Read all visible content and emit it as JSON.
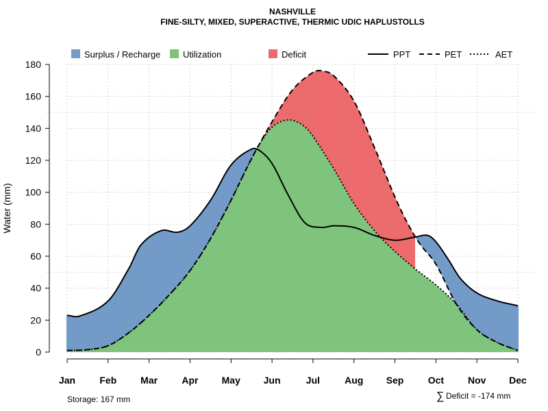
{
  "chart_data": {
    "type": "area",
    "title": "NASHVILLE",
    "subtitle": "FINE-SILTY, MIXED, SUPERACTIVE, THERMIC UDIC HAPLUSTOLLS",
    "ylabel": "Water (mm)",
    "xlabel": "",
    "ylim": [
      0,
      180
    ],
    "yticks": [
      0,
      20,
      40,
      60,
      80,
      100,
      120,
      140,
      160,
      180
    ],
    "categories": [
      "Jan",
      "Feb",
      "Mar",
      "Apr",
      "May",
      "Jun",
      "Jul",
      "Aug",
      "Sep",
      "Oct",
      "Nov",
      "Dec"
    ],
    "extra_hlines": [
      50,
      150
    ],
    "grid": true,
    "series": [
      {
        "name": "PPT",
        "style": "solid",
        "x": [
          0.0,
          0.3,
          1.0,
          1.5,
          1.8,
          2.3,
          2.7,
          3.0,
          3.5,
          4.0,
          4.5,
          4.7,
          5.0,
          5.4,
          5.8,
          6.2,
          6.5,
          7.0,
          7.5,
          8.0,
          8.5,
          8.8,
          9.0,
          9.3,
          9.6,
          10.0,
          10.5,
          11.0
        ],
        "values": [
          23,
          22.5,
          32,
          52,
          67,
          76,
          75,
          79,
          95,
          117,
          127,
          126,
          118,
          98,
          81,
          78,
          79,
          78,
          73,
          70,
          72,
          73,
          69,
          58,
          46,
          37,
          32,
          29
        ]
      },
      {
        "name": "PET",
        "style": "dashed",
        "x": [
          0.0,
          0.5,
          1.0,
          1.5,
          2.0,
          2.5,
          3.0,
          3.5,
          4.0,
          4.5,
          5.0,
          5.5,
          6.0,
          6.2,
          6.5,
          7.0,
          7.5,
          8.0,
          8.3,
          8.6,
          9.0,
          9.5,
          10.0,
          10.5,
          11.0
        ],
        "values": [
          1,
          1.5,
          4,
          12,
          23,
          36,
          51,
          71,
          95,
          121,
          144,
          164,
          175,
          176,
          173,
          157,
          128,
          97,
          81,
          68,
          55,
          30,
          14,
          6,
          1
        ]
      },
      {
        "name": "AET",
        "style": "dotted",
        "x": [
          0.0,
          0.5,
          1.0,
          1.5,
          2.0,
          2.5,
          3.0,
          3.5,
          4.0,
          4.5,
          4.9,
          5.2,
          5.5,
          5.8,
          6.0,
          6.5,
          7.0,
          7.5,
          8.0,
          8.5,
          9.0,
          9.5,
          10.0,
          10.5,
          11.0
        ],
        "values": [
          1,
          1.5,
          4,
          12,
          23,
          36,
          51,
          71,
          95,
          121,
          138,
          144,
          145,
          141,
          135,
          115,
          93,
          76,
          63,
          52,
          42,
          30,
          14,
          6,
          1
        ]
      }
    ],
    "legend": {
      "placement": "top",
      "fills": [
        {
          "label": "Surplus / Recharge",
          "color": "#739bc8"
        },
        {
          "label": "Utilization",
          "color": "#7fc47c"
        },
        {
          "label": "Deficit",
          "color": "#ec6b6d"
        }
      ],
      "lines": [
        {
          "label": "PPT",
          "style": "solid"
        },
        {
          "label": "PET",
          "style": "dashed"
        },
        {
          "label": "AET",
          "style": "dotted"
        }
      ]
    },
    "footer": {
      "storage": "Storage: 167 mm",
      "deficit_symbol": "∑",
      "deficit": "Deficit = -174 mm"
    }
  }
}
